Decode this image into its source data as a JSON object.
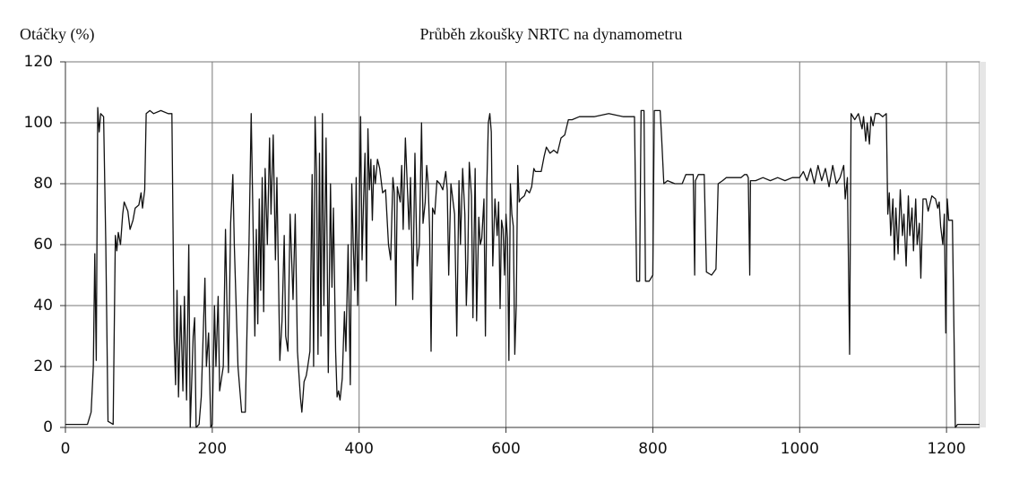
{
  "chart_data": {
    "type": "line",
    "title": "Průběh zkoušky NRTC na dynamometru",
    "y_label": "Otáčky (%)",
    "x": [
      0,
      30,
      35,
      38,
      40,
      42,
      44,
      46,
      48,
      52,
      55,
      58,
      65,
      68,
      70,
      72,
      75,
      78,
      80,
      85,
      88,
      92,
      95,
      100,
      103,
      105,
      108,
      110,
      115,
      120,
      130,
      140,
      145,
      148,
      150,
      152,
      154,
      157,
      160,
      162,
      165,
      168,
      170,
      174,
      176,
      178,
      182,
      185,
      190,
      192,
      195,
      198,
      200,
      203,
      205,
      208,
      210,
      215,
      218,
      220,
      222,
      225,
      228,
      230,
      235,
      240,
      245,
      248,
      250,
      253,
      256,
      258,
      260,
      262,
      264,
      266,
      268,
      270,
      272,
      275,
      278,
      280,
      283,
      286,
      288,
      292,
      295,
      298,
      300,
      303,
      306,
      310,
      313,
      316,
      320,
      322,
      325,
      328,
      330,
      333,
      336,
      338,
      340,
      342,
      344,
      346,
      348,
      350,
      352,
      355,
      358,
      361,
      363,
      365,
      368,
      370,
      372,
      374,
      377,
      380,
      382,
      385,
      388,
      390,
      392,
      394,
      396,
      398,
      400,
      402,
      404,
      406,
      408,
      410,
      412,
      414,
      416,
      418,
      420,
      422,
      425,
      428,
      432,
      436,
      440,
      443,
      446,
      448,
      450,
      452,
      456,
      458,
      460,
      463,
      466,
      468,
      470,
      473,
      476,
      479,
      482,
      485,
      487,
      490,
      492,
      494,
      496,
      498,
      500,
      503,
      506,
      510,
      514,
      518,
      520,
      522,
      525,
      530,
      533,
      536,
      538,
      541,
      544,
      546,
      548,
      550,
      553,
      555,
      558,
      560,
      563,
      565,
      567,
      570,
      572,
      574,
      576,
      578,
      580,
      582,
      585,
      588,
      590,
      592,
      594,
      596,
      598,
      600,
      602,
      604,
      606,
      608,
      610,
      612,
      614,
      616,
      618,
      620,
      625,
      628,
      632,
      635,
      638,
      640,
      645,
      648,
      652,
      655,
      660,
      665,
      670,
      675,
      680,
      685,
      690,
      700,
      720,
      740,
      760,
      775,
      778,
      782,
      784,
      788,
      790,
      795,
      800,
      802,
      810,
      812,
      815,
      820,
      830,
      840,
      845,
      855,
      857,
      858,
      862,
      870,
      873,
      880,
      886,
      889,
      895,
      900,
      910,
      920,
      925,
      928,
      930,
      932,
      933,
      940,
      950,
      960,
      970,
      980,
      990,
      1000,
      1005,
      1010,
      1015,
      1020,
      1025,
      1030,
      1035,
      1040,
      1045,
      1050,
      1055,
      1060,
      1062,
      1065,
      1068,
      1070,
      1075,
      1080,
      1085,
      1087,
      1090,
      1092,
      1095,
      1097,
      1100,
      1103,
      1108,
      1113,
      1118,
      1120,
      1122,
      1124,
      1127,
      1129,
      1131,
      1134,
      1137,
      1140,
      1142,
      1145,
      1148,
      1150,
      1153,
      1155,
      1158,
      1160,
      1163,
      1165,
      1168,
      1172,
      1175,
      1180,
      1185,
      1188,
      1190,
      1192,
      1195,
      1197,
      1199,
      1201,
      1203,
      1208,
      1212,
      1215,
      1245
    ],
    "values": [
      1,
      1,
      5,
      20,
      57,
      22,
      105,
      97,
      103,
      102,
      60,
      2,
      1,
      63,
      58,
      64,
      60,
      70,
      74,
      71,
      65,
      68,
      72,
      73,
      77,
      72,
      78,
      103,
      104,
      103,
      104,
      103,
      103,
      30,
      14,
      45,
      10,
      40,
      12,
      43,
      9,
      60,
      0,
      30,
      36,
      0,
      1,
      10,
      49,
      20,
      31,
      0,
      1,
      40,
      20,
      43,
      12,
      20,
      65,
      40,
      18,
      67,
      83,
      60,
      20,
      5,
      5,
      40,
      60,
      103,
      60,
      30,
      65,
      34,
      75,
      45,
      82,
      38,
      85,
      60,
      95,
      70,
      96,
      55,
      82,
      22,
      35,
      63,
      30,
      25,
      70,
      42,
      70,
      25,
      10,
      5,
      15,
      17,
      20,
      25,
      83,
      20,
      102,
      84,
      24,
      90,
      30,
      103,
      40,
      95,
      18,
      80,
      46,
      72,
      25,
      10,
      12,
      9,
      16,
      38,
      25,
      60,
      14,
      80,
      60,
      45,
      82,
      40,
      67,
      102,
      55,
      74,
      90,
      48,
      98,
      78,
      88,
      68,
      86,
      80,
      88,
      85,
      77,
      78,
      60,
      55,
      82,
      77,
      40,
      79,
      74,
      86,
      65,
      95,
      77,
      65,
      82,
      42,
      90,
      53,
      60,
      100,
      67,
      74,
      86,
      80,
      65,
      25,
      72,
      70,
      81,
      80,
      78,
      84,
      78,
      50,
      80,
      70,
      30,
      81,
      60,
      85,
      70,
      40,
      55,
      87,
      76,
      36,
      85,
      35,
      69,
      60,
      62,
      75,
      30,
      80,
      100,
      103,
      97,
      53,
      75,
      63,
      74,
      39,
      68,
      65,
      50,
      70,
      62,
      22,
      80,
      70,
      66,
      24,
      40,
      86,
      74,
      75,
      76,
      78,
      77,
      79,
      85,
      84,
      84,
      84,
      89,
      92,
      90,
      91,
      90,
      95,
      96,
      101,
      101,
      102,
      102,
      103,
      102,
      102,
      48,
      48,
      104,
      104,
      48,
      48,
      50,
      104,
      104,
      95,
      80,
      81,
      80,
      80,
      83,
      83,
      50,
      81,
      83,
      83,
      51,
      50,
      52,
      80,
      81,
      82,
      82,
      82,
      83,
      83,
      82,
      50,
      81,
      81,
      82,
      81,
      82,
      81,
      82,
      82,
      84,
      81,
      85,
      80,
      86,
      81,
      85,
      79,
      86,
      80,
      82,
      86,
      75,
      82,
      24,
      103,
      101,
      103,
      98,
      102,
      94,
      100,
      93,
      102,
      99,
      103,
      103,
      102,
      103,
      70,
      77,
      63,
      75,
      55,
      72,
      57,
      78,
      63,
      70,
      53,
      76,
      63,
      72,
      58,
      75,
      60,
      67,
      49,
      75,
      75,
      71,
      76,
      75,
      72,
      74,
      66,
      60,
      70,
      31,
      75,
      68,
      68,
      0,
      1,
      1
    ],
    "color": "#111111",
    "xlim": [
      0,
      1245
    ],
    "ylim": [
      0,
      120
    ],
    "xticks": [
      0,
      200,
      400,
      600,
      800,
      1000,
      1200
    ],
    "yticks": [
      0,
      20,
      40,
      60,
      80,
      100,
      120
    ],
    "grid": true
  }
}
